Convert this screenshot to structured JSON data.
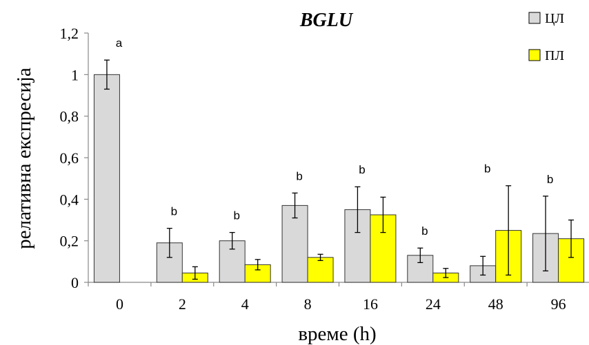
{
  "chart_data": {
    "type": "bar",
    "title": "BGLU",
    "xlabel": "време (h)",
    "ylabel": "релативна експресија",
    "categories": [
      "0",
      "2",
      "4",
      "8",
      "16",
      "24",
      "48",
      "96"
    ],
    "series": [
      {
        "name": "ЦЛ",
        "color": "#d9d9d9",
        "values": [
          1.0,
          0.19,
          0.2,
          0.37,
          0.35,
          0.13,
          0.08,
          0.235
        ],
        "errors": [
          0.07,
          0.07,
          0.04,
          0.06,
          0.11,
          0.035,
          0.045,
          0.18
        ]
      },
      {
        "name": "ПЛ",
        "color": "#ffff00",
        "values": [
          null,
          0.045,
          0.085,
          0.12,
          0.325,
          0.045,
          0.25,
          0.21
        ],
        "errors": [
          null,
          0.03,
          0.025,
          0.015,
          0.085,
          0.022,
          0.215,
          0.09
        ]
      }
    ],
    "annotations": [
      "a",
      "b",
      "b",
      "b",
      "b",
      "b",
      "b",
      "b"
    ],
    "ylim": [
      0,
      1.2
    ],
    "yticks": [
      "0",
      "0,2",
      "0,4",
      "0,6",
      "0,8",
      "1",
      "1,2"
    ],
    "grid": false,
    "legend": "top-right"
  }
}
